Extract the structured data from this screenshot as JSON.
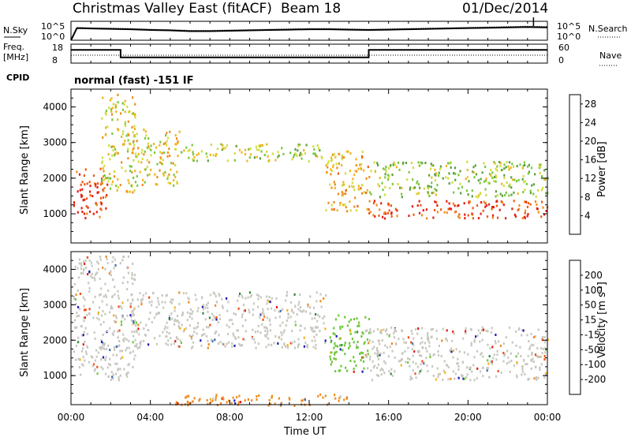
{
  "header": {
    "title": "Christmas Valley East (fitACF)",
    "beam": "Beam 18",
    "date": "01/Dec/2014"
  },
  "top_panels": {
    "nsky_label": "N.Sky",
    "nsky_ticks": [
      "10^5",
      "10^0"
    ],
    "nsearch_label": "N.Search",
    "nsearch_ticks": [
      "10^5",
      "10^0"
    ],
    "freq_label": "Freq.",
    "freq_unit": "[MHz]",
    "freq_ticks": [
      "18",
      "8"
    ],
    "nave_label": "Nave",
    "nave_ticks": [
      "60",
      "0"
    ],
    "cpid_label": "CPID",
    "cpid_text": "normal (fast) -151 IF"
  },
  "chart_data": [
    {
      "type": "line",
      "name": "noise-sky",
      "x_range": [
        0,
        24
      ],
      "x": [
        0,
        0.3,
        1,
        2,
        3,
        4,
        5,
        6,
        7,
        8,
        9,
        10,
        11,
        12,
        13,
        14,
        15,
        16,
        17,
        18,
        19,
        20,
        21,
        22,
        23,
        24
      ],
      "y_log10": [
        0,
        3.2,
        3.1,
        3.0,
        2.9,
        2.7,
        2.6,
        2.4,
        2.4,
        2.5,
        2.6,
        2.7,
        2.8,
        2.9,
        2.9,
        2.8,
        2.7,
        2.8,
        2.9,
        3.0,
        3.1,
        3.2,
        3.3,
        3.4,
        3.5,
        3.4
      ],
      "ylim_log10": [
        0,
        5
      ]
    },
    {
      "type": "line",
      "name": "frequency",
      "x": [
        0,
        2.5,
        2.5,
        15.0,
        15.0,
        24
      ],
      "y": [
        15.0,
        15.0,
        11.0,
        11.0,
        15.0,
        15.0
      ],
      "ylim": [
        8,
        18
      ]
    },
    {
      "type": "heatmap",
      "name": "power",
      "xlabel": "Time UT",
      "ylabel": "Slant Range [km]",
      "xlim": [
        0,
        24
      ],
      "ylim": [
        180,
        4500
      ],
      "xticks": [
        "00:00",
        "04:00",
        "08:00",
        "12:00",
        "16:00",
        "20:00",
        "00:00"
      ],
      "yticks": [
        1000,
        2000,
        3000,
        4000
      ],
      "colorbar_label": "Power [dB]",
      "colorbar_ticks": [
        4,
        8,
        12,
        16,
        20,
        24,
        28
      ],
      "colorbar_range": [
        0,
        30
      ],
      "colors": [
        "#1414d2",
        "#2d55a8",
        "#3c8a64",
        "#5aa03c",
        "#78c83c",
        "#d2dc3c",
        "#f0b41e",
        "#f08c1e",
        "#f05a14",
        "#e61e14"
      ],
      "features": [
        {
          "x": [
            0.1,
            1.8
          ],
          "range": [
            900,
            2300
          ],
          "level": 27,
          "desc": "early near-range scatter"
        },
        {
          "x": [
            1.5,
            3.2
          ],
          "range": [
            1600,
            4400
          ],
          "level": 18,
          "desc": "rising band"
        },
        {
          "x": [
            3.0,
            5.5
          ],
          "range": [
            1800,
            3400
          ],
          "level": 18
        },
        {
          "x": [
            5.5,
            12.8
          ],
          "range": [
            2500,
            3000
          ],
          "level": 16,
          "desc": "mid-range band"
        },
        {
          "x": [
            12.8,
            15.0
          ],
          "range": [
            1100,
            2800
          ],
          "level": 20,
          "desc": "descending band"
        },
        {
          "x": [
            14.8,
            24.0
          ],
          "range": [
            900,
            1400
          ],
          "level": 27,
          "desc": "strong near-range scatter"
        },
        {
          "x": [
            15.0,
            24.0
          ],
          "range": [
            1500,
            2500
          ],
          "level": 14
        }
      ]
    },
    {
      "type": "heatmap",
      "name": "velocity",
      "xlabel": "Time UT",
      "ylabel": "Slant Range [km]",
      "xlim": [
        0,
        24
      ],
      "ylim": [
        180,
        4500
      ],
      "xticks": [
        "00:00",
        "04:00",
        "08:00",
        "12:00",
        "16:00",
        "20:00",
        "00:00"
      ],
      "yticks": [
        1000,
        2000,
        3000,
        4000
      ],
      "colorbar_label": "Velocity [m s^-1]",
      "colorbar_ticks": [
        200,
        100,
        50,
        15,
        -15,
        -50,
        -100,
        -200
      ],
      "colorbar_range": [
        -250,
        250
      ],
      "colors": [
        "#1e1eb4",
        "#3c6eb4",
        "#2d8c3c",
        "#6ec83c",
        "#c8c8c0",
        "#f0b41e",
        "#f08c1e",
        "#f05014",
        "#e61e14"
      ],
      "features": [
        {
          "x": [
            0.1,
            3.2
          ],
          "range": [
            900,
            4400
          ],
          "value": 0,
          "desc": "mostly near-zero scatter"
        },
        {
          "x": [
            3.0,
            12.8
          ],
          "range": [
            1800,
            3400
          ],
          "value": 0
        },
        {
          "x": [
            13.0,
            15.0
          ],
          "range": [
            1100,
            2800
          ],
          "value": 40,
          "desc": "green positive patch"
        },
        {
          "x": [
            14.8,
            24.0
          ],
          "range": [
            900,
            2400
          ],
          "value": 0
        },
        {
          "x": [
            5.0,
            14.0
          ],
          "range": [
            180,
            500
          ],
          "value": -60,
          "desc": "orange ground scatter near range"
        }
      ]
    }
  ]
}
